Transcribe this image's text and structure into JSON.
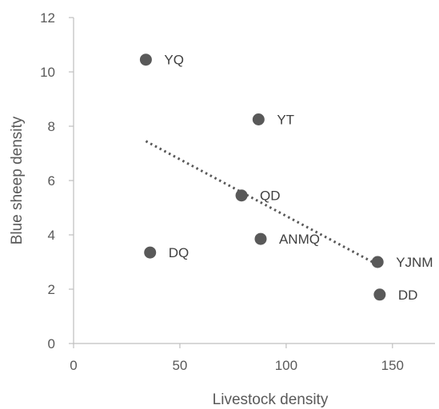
{
  "chart_data": {
    "type": "scatter",
    "title": "",
    "xlabel": "Livestock density",
    "ylabel": "Blue sheep density",
    "xlim": [
      0,
      170
    ],
    "ylim": [
      0,
      12
    ],
    "xticks": [
      0,
      50,
      100,
      150
    ],
    "yticks": [
      0,
      2,
      4,
      6,
      8,
      10,
      12
    ],
    "grid": false,
    "legend": "none",
    "colors": {
      "marker": "#595959",
      "trendline": "#595959",
      "axis": "#bfbfbf",
      "text": "#595959"
    },
    "points": [
      {
        "label": "YQ",
        "x": 34,
        "y": 10.45
      },
      {
        "label": "YT",
        "x": 87,
        "y": 8.25
      },
      {
        "label": "QD",
        "x": 79,
        "y": 5.45
      },
      {
        "label": "ANMQ",
        "x": 88,
        "y": 3.85
      },
      {
        "label": "DQ",
        "x": 36,
        "y": 3.35
      },
      {
        "label": "YJNM",
        "x": 143,
        "y": 3.0
      },
      {
        "label": "DD",
        "x": 144,
        "y": 1.8
      }
    ],
    "trendline": {
      "style": "dotted",
      "x": [
        34,
        143
      ],
      "y": [
        7.45,
        2.9
      ]
    }
  }
}
